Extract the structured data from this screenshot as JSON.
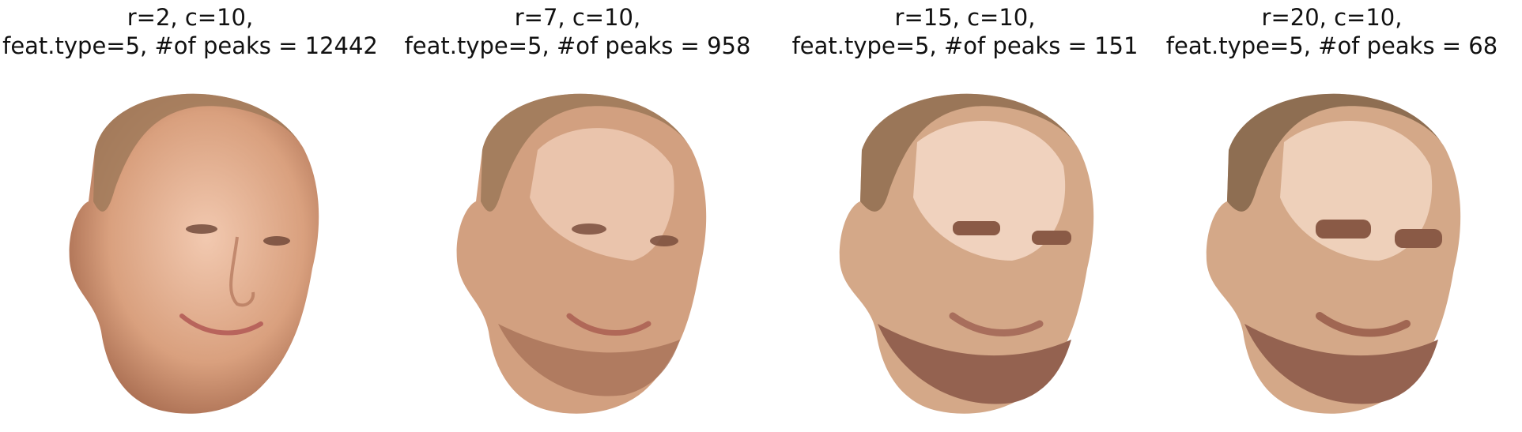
{
  "panels": [
    {
      "title_line1": "r=2, c=10,",
      "title_line2": "feat.type=5, #of peaks = 12442",
      "rendering": "photo",
      "colors": {
        "skin": "#d9a07e",
        "skin_light": "#f2c9b0",
        "skin_shadow": "#a86c50",
        "hair": "#a07a5a",
        "lip": "#b8645c"
      }
    },
    {
      "title_line1": "r=7, c=10,",
      "title_line2": "feat.type=5, #of peaks = 958",
      "rendering": "segmented",
      "colors": {
        "skin": "#d2a080",
        "skin_light": "#ecc8b0",
        "skin_shadow": "#a87258",
        "hair": "#9e7a5a",
        "lip": "#b06858"
      }
    },
    {
      "title_line1": "r=15, c=10,",
      "title_line2": "feat.type=5, #of peaks = 151",
      "rendering": "segmented",
      "colors": {
        "skin": "#d4a888",
        "skin_light": "#f0d2be",
        "skin_shadow": "#946250",
        "hair": "#9a7658",
        "lip": "#a86e5c"
      }
    },
    {
      "title_line1": "r=20, c=10,",
      "title_line2": "feat.type=5, #of peaks = 68",
      "rendering": "segmented",
      "colors": {
        "skin": "#d4a888",
        "skin_light": "#eed0ba",
        "skin_shadow": "#946250",
        "hair": "#8e6e52",
        "lip": "#a06652"
      }
    }
  ]
}
